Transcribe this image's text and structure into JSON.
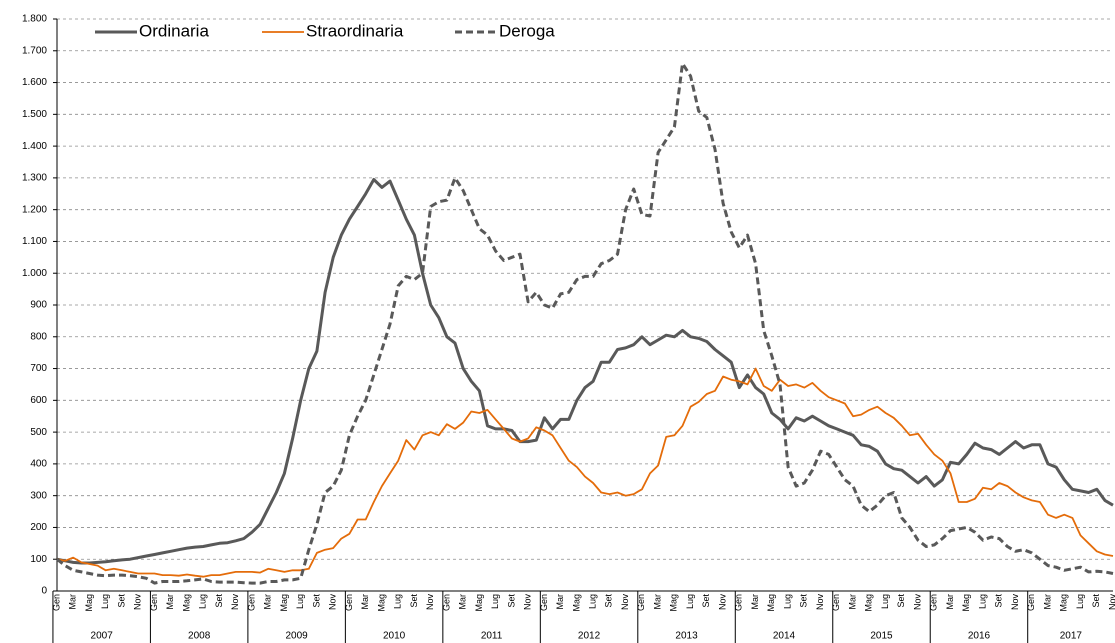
{
  "chart_data": {
    "type": "line",
    "categories": [
      "Gen",
      null,
      "Mar",
      null,
      "Mag",
      null,
      "Lug",
      null,
      "Set",
      null,
      "Nov",
      null,
      "Gen",
      null,
      "Mar",
      null,
      "Mag",
      null,
      "Lug",
      null,
      "Set",
      null,
      "Nov",
      null,
      "Gen",
      null,
      "Mar",
      null,
      "Mag",
      null,
      "Lug",
      null,
      "Set",
      null,
      "Nov",
      null,
      "Gen",
      null,
      "Mar",
      null,
      "Mag",
      null,
      "Lug",
      null,
      "Set",
      null,
      "Nov",
      null,
      "Gen",
      null,
      "Mar",
      null,
      "Mag",
      null,
      "Lug",
      null,
      "Set",
      null,
      "Nov",
      null,
      "Gen",
      null,
      "Mar",
      null,
      "Mag",
      null,
      "Lug",
      null,
      "Set",
      null,
      "Nov",
      null,
      "Gen",
      null,
      "Mar",
      null,
      "Mag",
      null,
      "Lug",
      null,
      "Set",
      null,
      "Nov",
      null,
      "Gen",
      null,
      "Mar",
      null,
      "Mag",
      null,
      "Lug",
      null,
      "Set",
      null,
      "Nov",
      null,
      "Gen",
      null,
      "Mar",
      null,
      "Mag",
      null,
      "Lug",
      null,
      "Set",
      null,
      "Nov",
      null,
      "Gen",
      null,
      "Mar",
      null,
      "Mag",
      null,
      "Lug",
      null,
      "Set",
      null,
      "Nov",
      null,
      "Gen",
      null,
      "Mar",
      null,
      "Mag",
      null,
      "Lug",
      null,
      "Set",
      null,
      "Nov"
    ],
    "years": [
      "2007",
      "2008",
      "2009",
      "2010",
      "2011",
      "2012",
      "2013",
      "2014",
      "2015",
      "2016",
      "2017"
    ],
    "series": [
      {
        "name": "Ordinaria",
        "color": "#595959",
        "line_style": "solid",
        "values": [
          100,
          95,
          90,
          88,
          88,
          90,
          92,
          95,
          98,
          100,
          105,
          110,
          115,
          120,
          125,
          130,
          135,
          138,
          140,
          145,
          150,
          152,
          158,
          165,
          185,
          210,
          260,
          310,
          370,
          480,
          600,
          700,
          755,
          940,
          1050,
          1120,
          1170,
          1210,
          1250,
          1295,
          1270,
          1290,
          1230,
          1170,
          1120,
          1000,
          900,
          860,
          800,
          780,
          700,
          660,
          630,
          520,
          510,
          510,
          505,
          470,
          470,
          475,
          545,
          510,
          540,
          540,
          600,
          640,
          660,
          720,
          720,
          760,
          765,
          775,
          800,
          775,
          790,
          805,
          800,
          820,
          800,
          795,
          785,
          760,
          740,
          720,
          640,
          680,
          640,
          620,
          560,
          540,
          510,
          545,
          535,
          550,
          535,
          520,
          510,
          500,
          490,
          460,
          455,
          440,
          400,
          385,
          380,
          360,
          340,
          360,
          330,
          350,
          405,
          400,
          430,
          465,
          450,
          445,
          430,
          450,
          470,
          450,
          460,
          460,
          400,
          390,
          350,
          320,
          315,
          310,
          320,
          285,
          270
        ]
      },
      {
        "name": "Straordinaria",
        "color": "#e46c0a",
        "line_style": "solid",
        "values": [
          100,
          95,
          105,
          90,
          85,
          80,
          65,
          70,
          65,
          60,
          55,
          55,
          55,
          50,
          50,
          48,
          52,
          48,
          45,
          50,
          50,
          55,
          60,
          60,
          60,
          58,
          70,
          65,
          60,
          65,
          65,
          70,
          120,
          130,
          135,
          165,
          180,
          225,
          225,
          280,
          330,
          370,
          410,
          475,
          445,
          490,
          500,
          490,
          525,
          510,
          530,
          565,
          560,
          570,
          540,
          510,
          480,
          470,
          480,
          515,
          505,
          490,
          450,
          410,
          390,
          360,
          340,
          310,
          305,
          310,
          300,
          305,
          320,
          370,
          395,
          485,
          490,
          520,
          580,
          595,
          620,
          630,
          675,
          665,
          660,
          650,
          700,
          645,
          630,
          665,
          645,
          650,
          640,
          655,
          630,
          610,
          600,
          590,
          550,
          555,
          570,
          580,
          560,
          545,
          520,
          490,
          495,
          460,
          430,
          410,
          370,
          280,
          280,
          290,
          325,
          320,
          340,
          330,
          310,
          295,
          285,
          280,
          240,
          230,
          240,
          230,
          175,
          150,
          125,
          115,
          110
        ]
      },
      {
        "name": "Deroga",
        "color": "#595959",
        "line_style": "dashed",
        "values": [
          100,
          80,
          65,
          60,
          55,
          50,
          48,
          50,
          50,
          48,
          45,
          40,
          25,
          30,
          30,
          30,
          32,
          35,
          38,
          30,
          28,
          28,
          28,
          26,
          25,
          25,
          30,
          30,
          35,
          35,
          40,
          130,
          210,
          310,
          330,
          380,
          490,
          550,
          600,
          680,
          760,
          840,
          960,
          990,
          980,
          1000,
          1210,
          1225,
          1230,
          1300,
          1260,
          1200,
          1140,
          1120,
          1070,
          1040,
          1050,
          1060,
          910,
          940,
          900,
          890,
          935,
          940,
          980,
          990,
          990,
          1030,
          1040,
          1060,
          1200,
          1265,
          1185,
          1180,
          1380,
          1420,
          1460,
          1660,
          1620,
          1510,
          1490,
          1390,
          1220,
          1130,
          1080,
          1120,
          1030,
          820,
          740,
          650,
          390,
          330,
          340,
          380,
          440,
          430,
          390,
          350,
          330,
          270,
          250,
          270,
          300,
          310,
          230,
          200,
          160,
          140,
          145,
          165,
          190,
          195,
          200,
          185,
          160,
          170,
          165,
          140,
          125,
          130,
          120,
          100,
          80,
          75,
          65,
          70,
          75,
          60,
          62,
          60,
          55
        ]
      }
    ],
    "ylim": [
      0,
      1800
    ],
    "yticks": [
      0,
      100,
      200,
      300,
      400,
      500,
      600,
      700,
      800,
      900,
      {
        "value": 1000,
        "label": "1.000"
      },
      {
        "value": 1100,
        "label": "1.100"
      },
      {
        "value": 1200,
        "label": "1.200"
      },
      {
        "value": 1300,
        "label": "1.300"
      },
      {
        "value": 1400,
        "label": "1.400"
      },
      {
        "value": 1500,
        "label": "1.500"
      },
      {
        "value": 1600,
        "label": "1.600"
      },
      {
        "value": 1700,
        "label": "1.700"
      },
      {
        "value": 1800,
        "label": "1.800"
      }
    ],
    "grid": true
  }
}
